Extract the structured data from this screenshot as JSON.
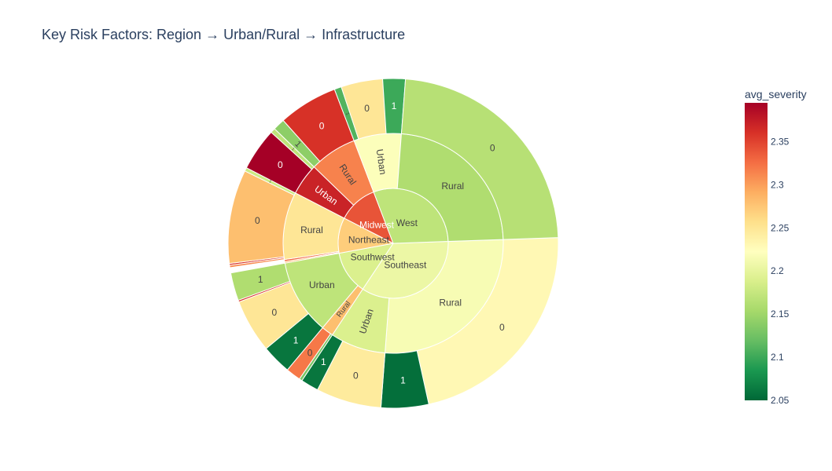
{
  "chart_data": {
    "type": "sunburst",
    "title": "Key Risk Factors: Region → Urban/Rural → Infrastructure",
    "colorbar": {
      "title": "avg_severity",
      "range": [
        2.05,
        2.395
      ],
      "ticks": [
        "2.05",
        "2.1",
        "2.15",
        "2.2",
        "2.25",
        "2.3",
        "2.35"
      ],
      "colorscale": [
        "#006837",
        "#1a9850",
        "#66bd63",
        "#a6d96a",
        "#d9ef8b",
        "#ffffbf",
        "#fee08b",
        "#fdae61",
        "#f46d43",
        "#d73027",
        "#a50026"
      ]
    },
    "nodes": [
      {
        "label": "Southeast",
        "value": 30,
        "color": 2.205,
        "children": [
          {
            "label": "Rural",
            "value": 23,
            "color": 2.215,
            "children": [
              {
                "label": "0",
                "value": 19,
                "color": 2.23
              },
              {
                "label": "1",
                "value": 4,
                "color": 2.055
              }
            ]
          },
          {
            "label": "Urban",
            "value": 7,
            "color": 2.19,
            "children": [
              {
                "label": "0",
                "value": 5.5,
                "color": 2.245
              },
              {
                "label": "1",
                "value": 1.5,
                "color": 2.06
              }
            ]
          }
        ]
      },
      {
        "label": "Southwest",
        "value": 11,
        "color": 2.19,
        "children": [
          {
            "label": "Rural",
            "value": 1.5,
            "color": 2.28,
            "children": [
              {
                "label": "",
                "value": 0.25,
                "color": 2.13
              },
              {
                "label": "0",
                "value": 1.25,
                "color": 2.32
              }
            ]
          },
          {
            "label": "Urban",
            "value": 9.5,
            "color": 2.17,
            "children": [
              {
                "label": "1",
                "value": 2.5,
                "color": 2.06
              },
              {
                "label": "0",
                "value": 4.5,
                "color": 2.25
              },
              {
                "label": "",
                "value": 0.15,
                "color": 2.36
              },
              {
                "label": "1",
                "value": 2.35,
                "color": 2.16
              }
            ]
          }
        ]
      },
      {
        "label": "Northeast",
        "value": 9,
        "color": 2.27,
        "children": [
          {
            "label": "",
            "value": 0.2,
            "color": 2.28
          },
          {
            "label": "",
            "value": 0.25,
            "color": 2.33
          },
          {
            "label": "Rural",
            "value": 8.55,
            "color": 2.25,
            "children": [
              {
                "label": "",
                "value": 0.2,
                "color": 2.31
              },
              {
                "label": "",
                "value": 0.15,
                "color": 2.36
              },
              {
                "label": "0",
                "value": 7.9,
                "color": 2.28
              },
              {
                "label": "1",
                "value": 0.3,
                "color": 2.18
              }
            ]
          }
        ]
      },
      {
        "label": "Midwest",
        "value": 10,
        "color": 2.34,
        "children": [
          {
            "label": "Urban",
            "value": 4,
            "color": 2.37,
            "children": [
              {
                "label": "0",
                "value": 3.6,
                "color": 2.395
              },
              {
                "label": "1",
                "value": 0.4,
                "color": 2.17
              }
            ]
          },
          {
            "label": "Rural",
            "value": 6,
            "color": 2.315,
            "children": [
              {
                "label": "1",
                "value": 1,
                "color": 2.14
              },
              {
                "label": "0",
                "value": 5,
                "color": 2.36
              }
            ]
          }
        ]
      },
      {
        "label": "West",
        "value": 26,
        "color": 2.17,
        "children": [
          {
            "label": "Urban",
            "value": 6,
            "color": 2.22,
            "children": [
              {
                "label": "1",
                "value": 0.6,
                "color": 2.11
              },
              {
                "label": "0",
                "value": 3.5,
                "color": 2.25
              },
              {
                "label": "1",
                "value": 1.9,
                "color": 2.1
              }
            ]
          },
          {
            "label": "Rural",
            "value": 20,
            "color": 2.16,
            "children": [
              {
                "label": "0",
                "value": 20,
                "color": 2.165
              }
            ]
          }
        ]
      }
    ]
  }
}
